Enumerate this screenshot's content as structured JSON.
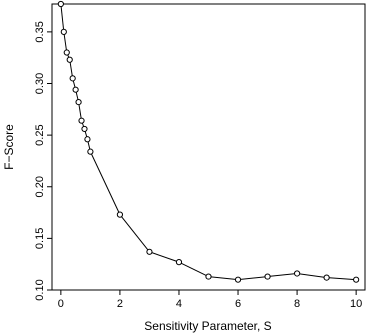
{
  "chart_data": {
    "type": "line",
    "title": "",
    "xlabel": "Sensitivity Parameter, S",
    "ylabel": "F−Score",
    "xlim": [
      -0.3,
      10.3
    ],
    "ylim": [
      0.1,
      0.377
    ],
    "xticks": [
      0,
      2,
      4,
      6,
      8,
      10
    ],
    "yticks": [
      0.1,
      0.15,
      0.2,
      0.25,
      0.3,
      0.35
    ],
    "xtick_labels": [
      "0",
      "2",
      "4",
      "6",
      "8",
      "10"
    ],
    "ytick_labels": [
      "0.10",
      "0.15",
      "0.20",
      "0.25",
      "0.30",
      "0.35"
    ],
    "grid": false,
    "series": [
      {
        "marker": "open-circle",
        "x": [
          0,
          0.1,
          0.2,
          0.3,
          0.4,
          0.5,
          0.6,
          0.7,
          0.8,
          0.9,
          1,
          2,
          3,
          4,
          5,
          6,
          7,
          8,
          9,
          10
        ],
        "y": [
          0.377,
          0.35,
          0.33,
          0.323,
          0.305,
          0.294,
          0.282,
          0.264,
          0.256,
          0.246,
          0.234,
          0.173,
          0.137,
          0.127,
          0.113,
          0.11,
          0.113,
          0.116,
          0.112,
          0.11
        ]
      }
    ]
  }
}
